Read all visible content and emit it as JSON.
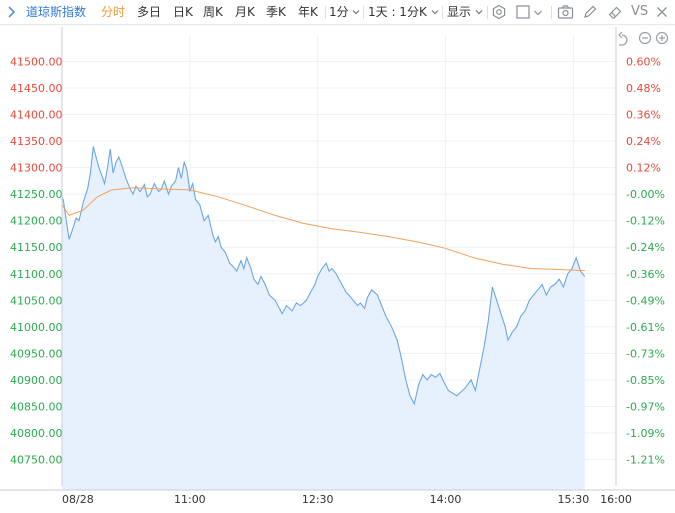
{
  "toolbar": {
    "title": "道琼斯指数",
    "tabs": [
      {
        "label": "分时",
        "active": true
      },
      {
        "label": "多日"
      },
      {
        "label": "日K"
      },
      {
        "label": "周K"
      },
      {
        "label": "月K"
      },
      {
        "label": "季K"
      },
      {
        "label": "年K"
      }
    ],
    "period_label": "1分",
    "range_label": "1天 : 1分K",
    "display_label": "显示",
    "compare_label": "VS",
    "right_icons": [
      "settings-icon",
      "square-icon",
      "camera-icon",
      "pen-icon",
      "eraser-icon"
    ]
  },
  "chart_controls": [
    "undo-icon",
    "zoom-out-icon",
    "zoom-in-icon"
  ],
  "colors": {
    "line": "#6aa7e6",
    "fill": "#e7f0fd",
    "avg": "#f2a15b",
    "up": "#e64a3b",
    "down": "#2bab4f",
    "neutral": "#333333"
  },
  "chart_data": {
    "type": "line",
    "ylim": [
      40700,
      41550
    ],
    "yticks": [
      41500,
      41450,
      41400,
      41350,
      41300,
      41250,
      41200,
      41150,
      41100,
      41050,
      41000,
      40950,
      40900,
      40850,
      40800,
      40750
    ],
    "ytick_labels": [
      "41500.00",
      "41450.00",
      "41400.00",
      "41350.00",
      "41300.00",
      "41250.00",
      "41200.00",
      "41150.00",
      "41100.00",
      "41050.00",
      "41000.00",
      "40950.00",
      "40900.00",
      "40850.00",
      "40800.00",
      "40750.00"
    ],
    "pct_ticks": [
      {
        "value": 41500,
        "label": "0.60%",
        "dir": "up"
      },
      {
        "value": 41450,
        "label": "0.48%",
        "dir": "up"
      },
      {
        "value": 41400,
        "label": "0.36%",
        "dir": "up"
      },
      {
        "value": 41350,
        "label": "0.24%",
        "dir": "up"
      },
      {
        "value": 41300,
        "label": "0.12%",
        "dir": "up"
      },
      {
        "value": 41250,
        "label": "-0.00%",
        "dir": "down"
      },
      {
        "value": 41200,
        "label": "-0.12%",
        "dir": "down"
      },
      {
        "value": 41150,
        "label": "-0.24%",
        "dir": "down"
      },
      {
        "value": 41100,
        "label": "-0.36%",
        "dir": "down"
      },
      {
        "value": 41050,
        "label": "-0.49%",
        "dir": "down"
      },
      {
        "value": 41000,
        "label": "-0.61%",
        "dir": "down"
      },
      {
        "value": 40950,
        "label": "-0.73%",
        "dir": "down"
      },
      {
        "value": 40900,
        "label": "-0.85%",
        "dir": "down"
      },
      {
        "value": 40850,
        "label": "-0.97%",
        "dir": "down"
      },
      {
        "value": 40800,
        "label": "-1.09%",
        "dir": "down"
      },
      {
        "value": 40750,
        "label": "-1.21%",
        "dir": "down"
      }
    ],
    "x_range": [
      "09:30",
      "16:00"
    ],
    "x_ticks": [
      {
        "time": "09:30",
        "label": "08/28"
      },
      {
        "time": "11:00",
        "label": "11:00"
      },
      {
        "time": "12:30",
        "label": "12:30"
      },
      {
        "time": "14:00",
        "label": "14:00"
      },
      {
        "time": "15:30",
        "label": "15:30"
      },
      {
        "time": "16:00",
        "label": "16:00"
      }
    ],
    "grid": true,
    "series": [
      {
        "key": "price",
        "points": [
          [
            "09:30",
            41245
          ],
          [
            "09:31",
            41238
          ],
          [
            "09:33",
            41200
          ],
          [
            "09:35",
            41165
          ],
          [
            "09:37",
            41180
          ],
          [
            "09:40",
            41205
          ],
          [
            "09:42",
            41200
          ],
          [
            "09:45",
            41235
          ],
          [
            "09:48",
            41260
          ],
          [
            "09:50",
            41290
          ],
          [
            "09:52",
            41340
          ],
          [
            "09:54",
            41320
          ],
          [
            "09:56",
            41300
          ],
          [
            "09:58",
            41285
          ],
          [
            "10:00",
            41270
          ],
          [
            "10:02",
            41300
          ],
          [
            "10:04",
            41335
          ],
          [
            "10:06",
            41290
          ],
          [
            "10:08",
            41310
          ],
          [
            "10:10",
            41320
          ],
          [
            "10:12",
            41305
          ],
          [
            "10:15",
            41280
          ],
          [
            "10:18",
            41260
          ],
          [
            "10:20",
            41250
          ],
          [
            "10:22",
            41265
          ],
          [
            "10:25",
            41255
          ],
          [
            "10:28",
            41268
          ],
          [
            "10:30",
            41245
          ],
          [
            "10:32",
            41250
          ],
          [
            "10:35",
            41270
          ],
          [
            "10:38",
            41255
          ],
          [
            "10:40",
            41260
          ],
          [
            "10:42",
            41275
          ],
          [
            "10:45",
            41250
          ],
          [
            "10:47",
            41265
          ],
          [
            "10:50",
            41275
          ],
          [
            "10:52",
            41300
          ],
          [
            "10:54",
            41280
          ],
          [
            "10:56",
            41310
          ],
          [
            "10:58",
            41295
          ],
          [
            "11:00",
            41255
          ],
          [
            "11:02",
            41270
          ],
          [
            "11:04",
            41240
          ],
          [
            "11:07",
            41230
          ],
          [
            "11:10",
            41200
          ],
          [
            "11:13",
            41210
          ],
          [
            "11:16",
            41175
          ],
          [
            "11:18",
            41160
          ],
          [
            "11:20",
            41170
          ],
          [
            "11:22",
            41150
          ],
          [
            "11:25",
            41140
          ],
          [
            "11:28",
            41120
          ],
          [
            "11:30",
            41115
          ],
          [
            "11:33",
            41105
          ],
          [
            "11:36",
            41125
          ],
          [
            "11:38",
            41110
          ],
          [
            "11:40",
            41130
          ],
          [
            "11:43",
            41110
          ],
          [
            "11:45",
            41090
          ],
          [
            "11:48",
            41080
          ],
          [
            "11:50",
            41095
          ],
          [
            "11:53",
            41080
          ],
          [
            "11:56",
            41060
          ],
          [
            "12:00",
            41050
          ],
          [
            "12:02",
            41040
          ],
          [
            "12:05",
            41025
          ],
          [
            "12:08",
            41040
          ],
          [
            "12:12",
            41030
          ],
          [
            "12:15",
            41045
          ],
          [
            "12:18",
            41040
          ],
          [
            "12:22",
            41050
          ],
          [
            "12:25",
            41065
          ],
          [
            "12:28",
            41080
          ],
          [
            "12:30",
            41095
          ],
          [
            "12:33",
            41110
          ],
          [
            "12:36",
            41120
          ],
          [
            "12:38",
            41105
          ],
          [
            "12:40",
            41110
          ],
          [
            "12:43",
            41100
          ],
          [
            "12:45",
            41090
          ],
          [
            "12:48",
            41075
          ],
          [
            "12:50",
            41065
          ],
          [
            "12:52",
            41060
          ],
          [
            "12:55",
            41050
          ],
          [
            "12:58",
            41040
          ],
          [
            "13:00",
            41045
          ],
          [
            "13:03",
            41035
          ],
          [
            "13:05",
            41055
          ],
          [
            "13:08",
            41070
          ],
          [
            "13:12",
            41060
          ],
          [
            "13:15",
            41040
          ],
          [
            "13:18",
            41020
          ],
          [
            "13:22",
            41000
          ],
          [
            "13:26",
            40975
          ],
          [
            "13:29",
            40940
          ],
          [
            "13:32",
            40900
          ],
          [
            "13:35",
            40870
          ],
          [
            "13:38",
            40855
          ],
          [
            "13:41",
            40890
          ],
          [
            "13:44",
            40910
          ],
          [
            "13:47",
            40900
          ],
          [
            "13:50",
            40910
          ],
          [
            "13:53",
            40905
          ],
          [
            "13:56",
            40912
          ],
          [
            "13:59",
            40895
          ],
          [
            "14:02",
            40880
          ],
          [
            "14:05",
            40875
          ],
          [
            "14:08",
            40870
          ],
          [
            "14:11",
            40878
          ],
          [
            "14:14",
            40885
          ],
          [
            "14:18",
            40900
          ],
          [
            "14:21",
            40880
          ],
          [
            "14:24",
            40920
          ],
          [
            "14:27",
            40960
          ],
          [
            "14:30",
            41010
          ],
          [
            "14:33",
            41075
          ],
          [
            "14:36",
            41050
          ],
          [
            "14:39",
            41025
          ],
          [
            "14:42",
            41000
          ],
          [
            "14:44",
            40975
          ],
          [
            "14:47",
            40990
          ],
          [
            "14:50",
            41000
          ],
          [
            "14:53",
            41020
          ],
          [
            "14:56",
            41030
          ],
          [
            "14:59",
            41050
          ],
          [
            "15:02",
            41060
          ],
          [
            "15:05",
            41070
          ],
          [
            "15:08",
            41080
          ],
          [
            "15:11",
            41060
          ],
          [
            "15:14",
            41075
          ],
          [
            "15:17",
            41080
          ],
          [
            "15:20",
            41090
          ],
          [
            "15:23",
            41075
          ],
          [
            "15:26",
            41100
          ],
          [
            "15:29",
            41110
          ],
          [
            "15:32",
            41130
          ],
          [
            "15:35",
            41105
          ],
          [
            "15:38",
            41095
          ]
        ]
      },
      {
        "key": "average",
        "points": [
          [
            "09:30",
            41230
          ],
          [
            "09:35",
            41210
          ],
          [
            "09:45",
            41220
          ],
          [
            "09:55",
            41245
          ],
          [
            "10:05",
            41258
          ],
          [
            "10:20",
            41262
          ],
          [
            "10:40",
            41260
          ],
          [
            "11:00",
            41258
          ],
          [
            "11:20",
            41245
          ],
          [
            "11:40",
            41228
          ],
          [
            "12:00",
            41210
          ],
          [
            "12:20",
            41195
          ],
          [
            "12:40",
            41185
          ],
          [
            "13:00",
            41178
          ],
          [
            "13:20",
            41170
          ],
          [
            "13:40",
            41160
          ],
          [
            "14:00",
            41148
          ],
          [
            "14:20",
            41130
          ],
          [
            "14:40",
            41118
          ],
          [
            "15:00",
            41110
          ],
          [
            "15:20",
            41108
          ],
          [
            "15:38",
            41106
          ]
        ]
      }
    ]
  }
}
